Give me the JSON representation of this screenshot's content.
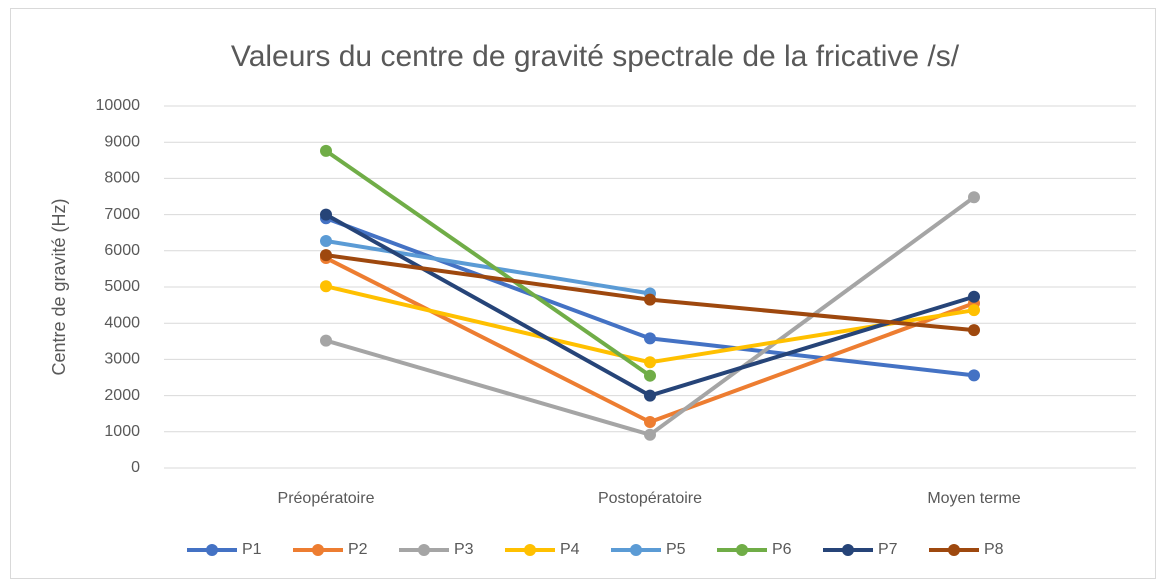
{
  "chart_data": {
    "type": "line",
    "title": "Valeurs du centre de gravité spectrale de la fricative /s/",
    "y_label": "Centre de gravité (Hz)",
    "categories": [
      "Préopératoire",
      "Postopératoire",
      "Moyen terme"
    ],
    "series": [
      {
        "name": "P1",
        "color": "#4472c4",
        "values": [
          6900,
          3580,
          2560
        ]
      },
      {
        "name": "P2",
        "color": "#ed7d31",
        "values": [
          5800,
          1270,
          4550
        ]
      },
      {
        "name": "P3",
        "color": "#a5a5a5",
        "values": [
          3520,
          920,
          7480
        ]
      },
      {
        "name": "P4",
        "color": "#ffc000",
        "values": [
          5020,
          2920,
          4360
        ]
      },
      {
        "name": "P5",
        "color": "#5b9bd5",
        "values": [
          6270,
          4820,
          null
        ]
      },
      {
        "name": "P6",
        "color": "#70ad47",
        "values": [
          8760,
          2550,
          null
        ]
      },
      {
        "name": "P7",
        "color": "#264478",
        "values": [
          7000,
          2000,
          4730
        ]
      },
      {
        "name": "P8",
        "color": "#9e480e",
        "values": [
          5880,
          4650,
          3810
        ]
      }
    ],
    "ylim": [
      0,
      10000
    ],
    "yticks": [
      0,
      1000,
      2000,
      3000,
      4000,
      5000,
      6000,
      7000,
      8000,
      9000,
      10000
    ],
    "grid": true,
    "legend": "bottom"
  }
}
